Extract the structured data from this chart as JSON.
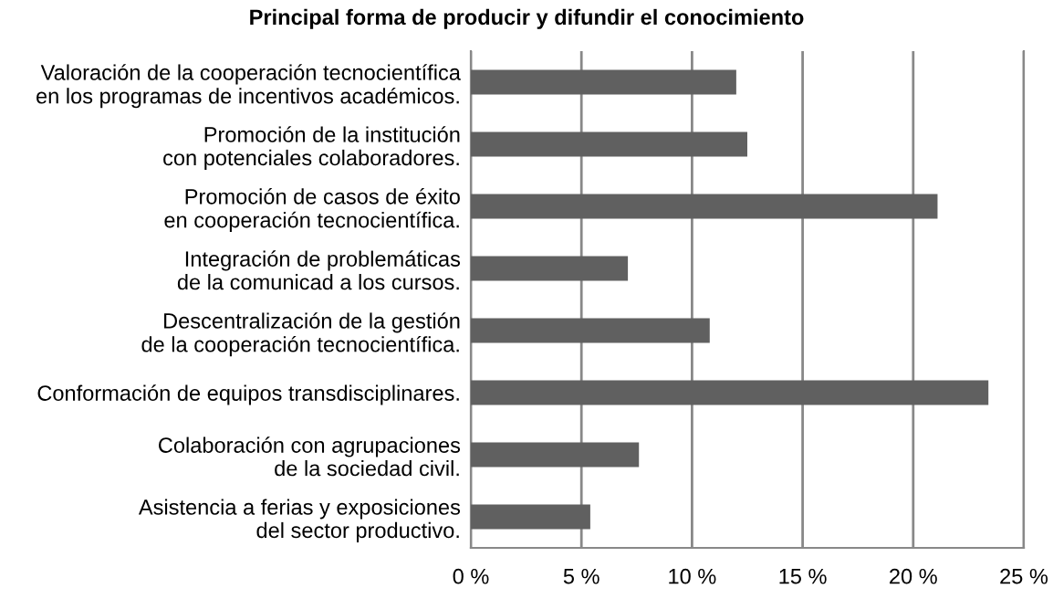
{
  "chart_data": {
    "type": "bar",
    "orientation": "horizontal",
    "title": "Principal forma de producir y difundir el conocimiento",
    "categories": [
      "Valoración de la cooperación tecnocientífica\nen los programas de incentivos académicos.",
      "Promoción de la institución\ncon potenciales colaboradores.",
      "Promoción de casos de éxito\nen cooperación tecnocientífica.",
      "Integración de problemáticas\nde la comunicad a los cursos.",
      "Descentralización de la gestión\nde la cooperación tecnocientífica.",
      "Conformación de equipos transdisciplinares.",
      "Colaboración con agrupaciones\nde la sociedad civil.",
      "Asistencia a ferias y exposiciones\ndel sector productivo."
    ],
    "values": [
      12.0,
      12.5,
      21.1,
      7.1,
      10.8,
      23.4,
      7.6,
      5.4
    ],
    "color": "#606060",
    "xlim": [
      0,
      25
    ],
    "xticks": [
      {
        "value": 0,
        "label": "0 %"
      },
      {
        "value": 5,
        "label": "5 %"
      },
      {
        "value": 10,
        "label": "10 %"
      },
      {
        "value": 15,
        "label": "15 %"
      },
      {
        "value": 20,
        "label": "20 %"
      },
      {
        "value": 25,
        "label": "25 %"
      }
    ],
    "grid": "x"
  }
}
